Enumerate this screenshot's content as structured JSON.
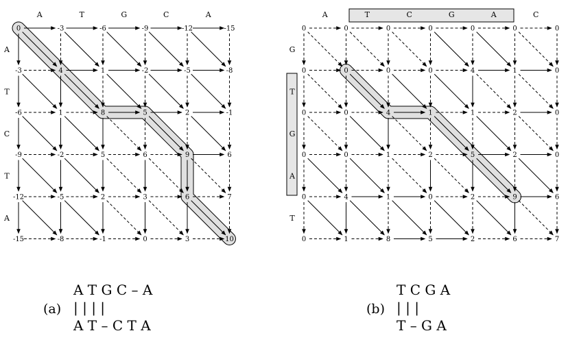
{
  "panel_a": {
    "top_seq": [
      "A",
      "T",
      "G",
      "C",
      "A"
    ],
    "left_seq": [
      "A",
      "T",
      "C",
      "T",
      "A"
    ],
    "scores": [
      [
        "0",
        "-3",
        "-6",
        "-9",
        "-12",
        "-15"
      ],
      [
        "-3",
        "4",
        "1",
        "-2",
        "-5",
        "-8"
      ],
      [
        "-6",
        "1",
        "8",
        "5",
        "2",
        "-1"
      ],
      [
        "-9",
        "-2",
        "5",
        "6",
        "9",
        "6"
      ],
      [
        "-12",
        "-5",
        "2",
        "3",
        "6",
        "7"
      ],
      [
        "-15",
        "-8",
        "-1",
        "0",
        "3",
        "10"
      ]
    ],
    "path": [
      [
        0,
        0
      ],
      [
        1,
        1
      ],
      [
        2,
        2
      ],
      [
        2,
        3
      ],
      [
        3,
        4
      ],
      [
        4,
        4
      ],
      [
        5,
        5
      ]
    ],
    "caption": "(a)",
    "alignment": {
      "top": "A T G C – A",
      "middle": "|  |     |     |",
      "bottom": "A T – C T A"
    }
  },
  "panel_b": {
    "top_seq": [
      "A",
      "T",
      "C",
      "G",
      "A",
      "C"
    ],
    "left_seq": [
      "G",
      "T",
      "G",
      "A",
      "T"
    ],
    "scores": [
      [
        "0",
        "0",
        "0",
        "0",
        "0",
        "0",
        "0"
      ],
      [
        "0",
        "0",
        "0",
        "0",
        "4",
        "1",
        "0"
      ],
      [
        "0",
        "0",
        "4",
        "1",
        "1",
        "2",
        "0"
      ],
      [
        "0",
        "0",
        "1",
        "2",
        "5",
        "2",
        "0"
      ],
      [
        "0",
        "4",
        "1",
        "0",
        "2",
        "9",
        "6"
      ],
      [
        "0",
        "1",
        "8",
        "5",
        "2",
        "6",
        "7"
      ]
    ],
    "path": [
      [
        1,
        1
      ],
      [
        2,
        2
      ],
      [
        2,
        3
      ],
      [
        3,
        4
      ],
      [
        4,
        5
      ]
    ],
    "caption": "(b)",
    "alignment": {
      "top": "T C G A",
      "middle": "|        |  |",
      "bottom": "T – G A"
    }
  }
}
